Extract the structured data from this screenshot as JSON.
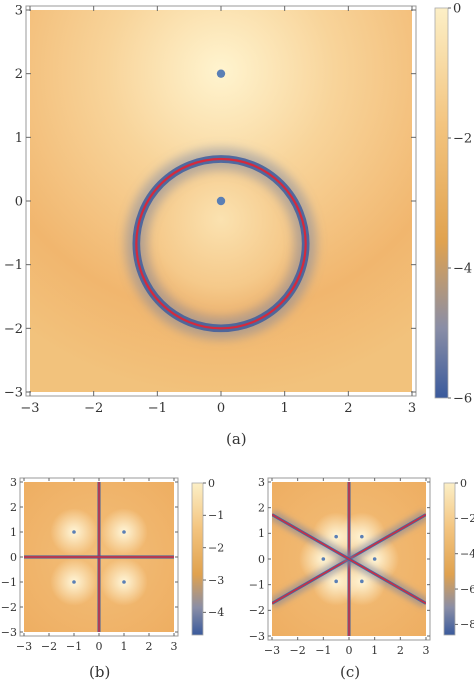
{
  "panels": [
    {
      "id": "a",
      "caption": "(a)",
      "type": "heatmap",
      "xticks": [
        "−3",
        "−2",
        "−1",
        "0",
        "1",
        "2",
        "3"
      ],
      "yticks": [
        "−3",
        "−2",
        "−1",
        "0",
        "1",
        "2",
        "3"
      ],
      "xlim": [
        -3,
        3
      ],
      "ylim": [
        -3,
        3
      ],
      "colorbar": {
        "range": [
          -6,
          0
        ],
        "ticks": [
          "0",
          "−2",
          "−4",
          "−6"
        ]
      },
      "points": [
        [
          0,
          2
        ],
        [
          0,
          0
        ]
      ],
      "curves": [
        {
          "kind": "circle",
          "cx": 0,
          "cy": -0.67,
          "r": 1.33,
          "color": "#d42a3c"
        }
      ]
    },
    {
      "id": "b",
      "caption": "(b)",
      "type": "heatmap",
      "xticks": [
        "−3",
        "−2",
        "−1",
        "0",
        "1",
        "2",
        "3"
      ],
      "yticks": [
        "−3",
        "−2",
        "−1",
        "0",
        "1",
        "2",
        "3"
      ],
      "xlim": [
        -3,
        3
      ],
      "ylim": [
        -3,
        3
      ],
      "colorbar": {
        "range": [
          -4.7,
          0
        ],
        "ticks": [
          "0",
          "−1",
          "−2",
          "−3",
          "−4"
        ]
      },
      "points": [
        [
          -1,
          1
        ],
        [
          1,
          1
        ],
        [
          -1,
          -1
        ],
        [
          1,
          -1
        ]
      ],
      "curves": [
        {
          "kind": "line",
          "from": [
            0,
            -3
          ],
          "to": [
            0,
            3
          ],
          "color": "#d42a3c"
        },
        {
          "kind": "line",
          "from": [
            -3,
            0
          ],
          "to": [
            3,
            0
          ],
          "color": "#d42a3c"
        }
      ]
    },
    {
      "id": "c",
      "caption": "(c)",
      "type": "heatmap",
      "xticks": [
        "−3",
        "−2",
        "−1",
        "0",
        "1",
        "2",
        "3"
      ],
      "yticks": [
        "−3",
        "−2",
        "−1",
        "0",
        "1",
        "2",
        "3"
      ],
      "xlim": [
        -3,
        3
      ],
      "ylim": [
        -3,
        3
      ],
      "colorbar": {
        "range": [
          -8.6,
          0
        ],
        "ticks": [
          "0",
          "−2",
          "−4",
          "−6",
          "−8"
        ]
      },
      "points": [
        [
          -0.5,
          0.87
        ],
        [
          0.5,
          0.87
        ],
        [
          -1,
          0
        ],
        [
          1,
          0
        ],
        [
          -0.5,
          -0.87
        ],
        [
          0.5,
          -0.87
        ]
      ],
      "curves": [
        {
          "kind": "line",
          "from": [
            0,
            -3
          ],
          "to": [
            0,
            3
          ],
          "color": "#d42a3c"
        },
        {
          "kind": "line",
          "from": [
            -3,
            -1.73
          ],
          "to": [
            3,
            1.73
          ],
          "color": "#d42a3c"
        },
        {
          "kind": "line",
          "from": [
            -3,
            1.73
          ],
          "to": [
            3,
            -1.73
          ],
          "color": "#d42a3c"
        }
      ]
    }
  ],
  "colors": {
    "point": "#5a7fb5",
    "frame": "#9a9a9a"
  }
}
